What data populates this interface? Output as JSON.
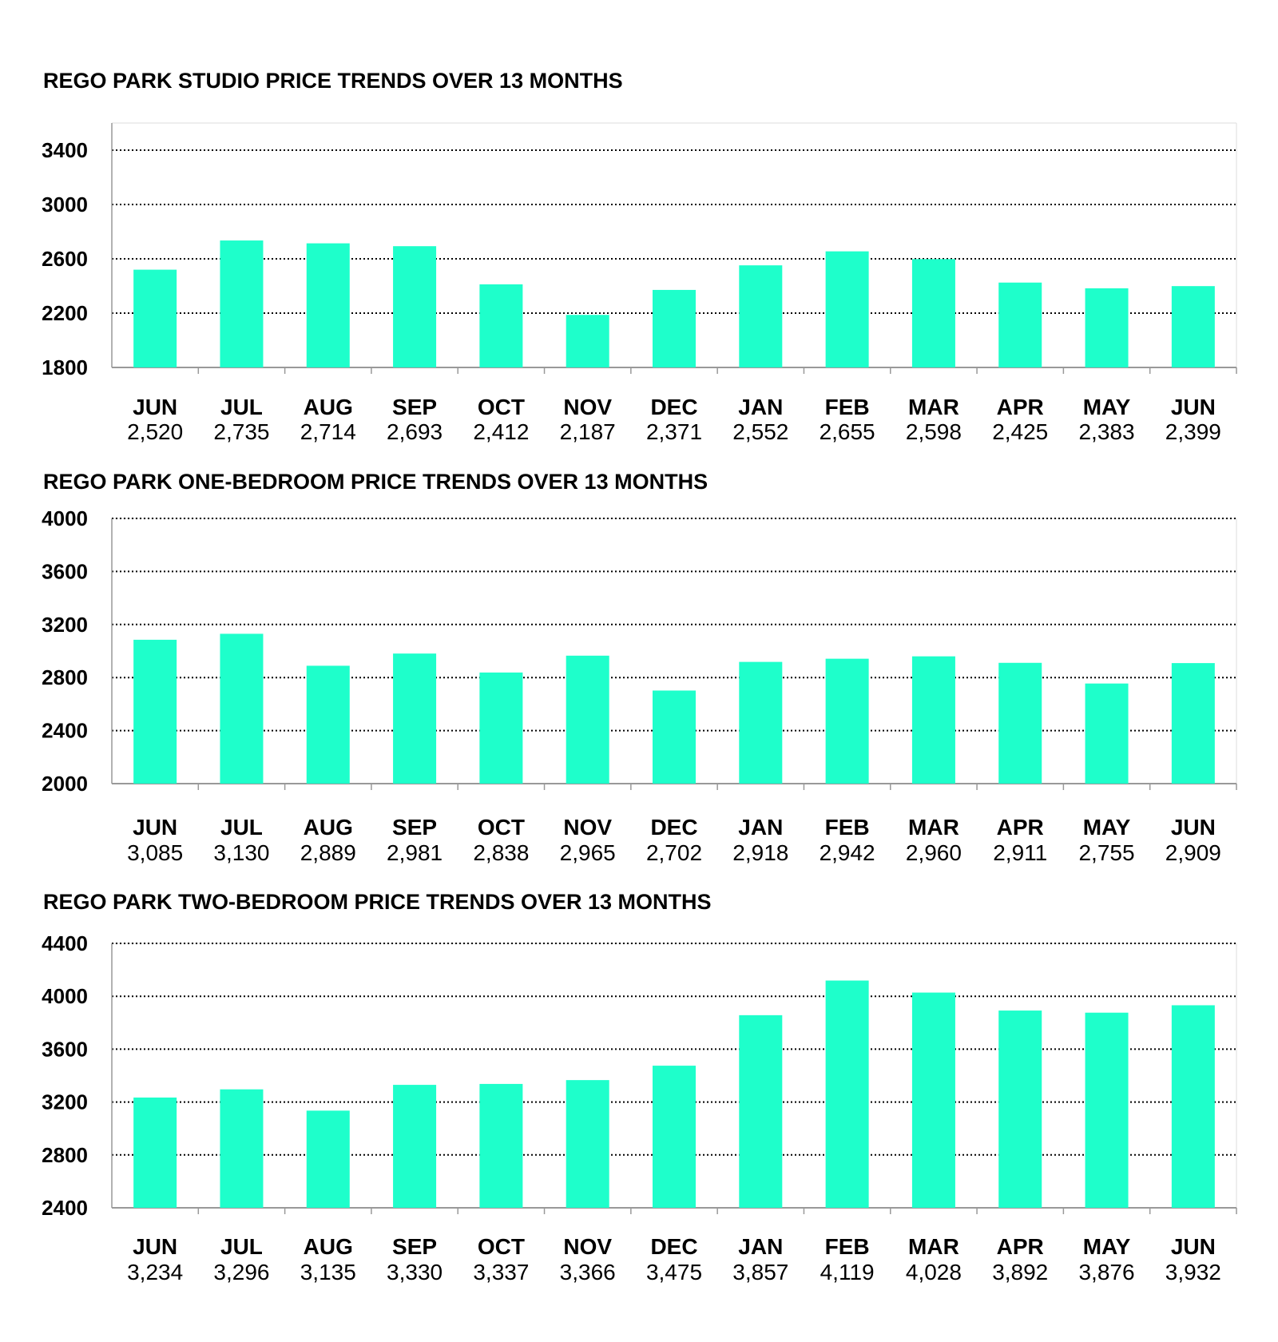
{
  "chart_data": [
    {
      "type": "bar",
      "title": "REGO PARK STUDIO PRICE TRENDS OVER 13 MONTHS",
      "categories": [
        "JUN",
        "JUL",
        "AUG",
        "SEP",
        "OCT",
        "NOV",
        "DEC",
        "JAN",
        "FEB",
        "MAR",
        "APR",
        "MAY",
        "JUN"
      ],
      "value_labels": [
        "2,520",
        "2,735",
        "2,714",
        "2,693",
        "2,412",
        "2,187",
        "2,371",
        "2,552",
        "2,655",
        "2,598",
        "2,425",
        "2,383",
        "2,399"
      ],
      "values": [
        2520,
        2735,
        2714,
        2693,
        2412,
        2187,
        2371,
        2552,
        2655,
        2598,
        2425,
        2383,
        2399
      ],
      "yticks": [
        "1800",
        "2200",
        "2600",
        "3000",
        "3400"
      ],
      "ylim": [
        1800,
        3600
      ],
      "grid": "dotted horizontal",
      "bar_color": "#1EFFCB"
    },
    {
      "type": "bar",
      "title": "REGO PARK ONE-BEDROOM PRICE TRENDS OVER 13 MONTHS",
      "categories": [
        "JUN",
        "JUL",
        "AUG",
        "SEP",
        "OCT",
        "NOV",
        "DEC",
        "JAN",
        "FEB",
        "MAR",
        "APR",
        "MAY",
        "JUN"
      ],
      "value_labels": [
        "3,085",
        "3,130",
        "2,889",
        "2,981",
        "2,838",
        "2,965",
        "2,702",
        "2,918",
        "2,942",
        "2,960",
        "2,911",
        "2,755",
        "2,909"
      ],
      "values": [
        3085,
        3130,
        2889,
        2981,
        2838,
        2965,
        2702,
        2918,
        2942,
        2960,
        2911,
        2755,
        2909
      ],
      "yticks": [
        "2000",
        "2400",
        "2800",
        "3200",
        "3600",
        "4000"
      ],
      "ylim": [
        2000,
        4000
      ],
      "grid": "dotted horizontal",
      "bar_color": "#1EFFCB"
    },
    {
      "type": "bar",
      "title": "REGO PARK TWO-BEDROOM PRICE TRENDS OVER 13 MONTHS",
      "categories": [
        "JUN",
        "JUL",
        "AUG",
        "SEP",
        "OCT",
        "NOV",
        "DEC",
        "JAN",
        "FEB",
        "MAR",
        "APR",
        "MAY",
        "JUN"
      ],
      "value_labels": [
        "3,234",
        "3,296",
        "3,135",
        "3,330",
        "3,337",
        "3,366",
        "3,475",
        "3,857",
        "4,119",
        "4,028",
        "3,892",
        "3,876",
        "3,932"
      ],
      "values": [
        3234,
        3296,
        3135,
        3330,
        3337,
        3366,
        3475,
        3857,
        4119,
        4028,
        3892,
        3876,
        3932
      ],
      "yticks": [
        "2400",
        "2800",
        "3200",
        "3600",
        "4000",
        "4400"
      ],
      "ylim": [
        2400,
        4400
      ],
      "grid": "dotted horizontal",
      "bar_color": "#1EFFCB"
    }
  ]
}
